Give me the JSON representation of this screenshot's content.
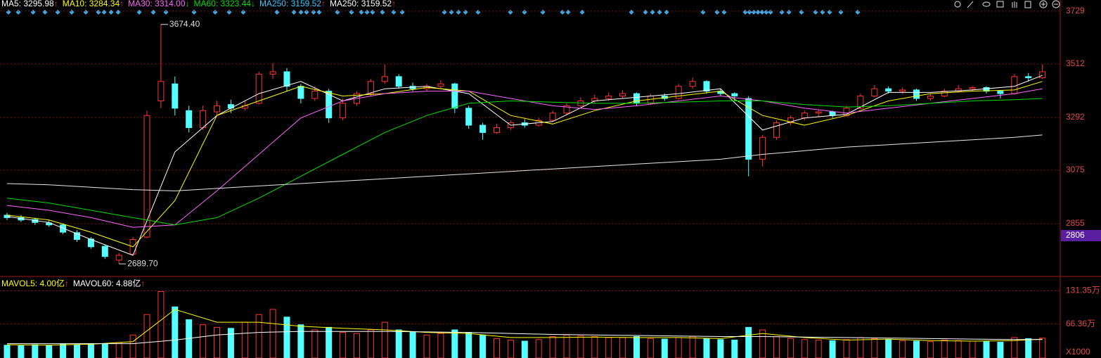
{
  "chart_data": {
    "type": "candlestick",
    "up_color": "#ff3232",
    "down_color": "#54ffff",
    "legend": [
      {
        "text": "MA5: 3295.98",
        "arrow": "↑",
        "color": "#ffffff"
      },
      {
        "text": "MA10: 3284.34",
        "arrow": "↑",
        "color": "#ffff00"
      },
      {
        "text": "MA30: 3314.00",
        "arrow": "↓",
        "color": "#ff66ff"
      },
      {
        "text": "MA60: 3323.44",
        "arrow": "↓",
        "color": "#00e000"
      },
      {
        "text": "MA250: 3159.52",
        "arrow": "↑",
        "color": "#3fc6ff"
      },
      {
        "text": "MA250: 3159.52",
        "arrow": "↑",
        "color": "#ffffff"
      }
    ],
    "ylim": [
      2641,
      3775
    ],
    "yticks": [
      3729,
      3512,
      3292,
      3075,
      2855
    ],
    "price_marker": 2806,
    "open": [
      2890,
      2880,
      2872,
      2858,
      2850,
      2818,
      2792,
      2762,
      2705,
      2730,
      2800,
      3360,
      3430,
      3320,
      3250,
      3315,
      3345,
      3330,
      3350,
      3470,
      3480,
      3420,
      3370,
      3400,
      3290,
      3350,
      3390,
      3440,
      3460,
      3420,
      3410,
      3420,
      3430,
      3330,
      3260,
      3230,
      3250,
      3270,
      3260,
      3280,
      3310,
      3340,
      3360,
      3370,
      3380,
      3390,
      3350,
      3380,
      3370,
      3420,
      3440,
      3400,
      3390,
      3370,
      3120,
      3210,
      3270,
      3290,
      3310,
      3315,
      3300,
      3330,
      3380,
      3410,
      3400,
      3405,
      3370,
      3380,
      3400,
      3410,
      3415,
      3400,
      3390,
      3460,
      3455
    ],
    "high": [
      2900,
      2890,
      2880,
      2870,
      2856,
      2828,
      2800,
      2770,
      2735,
      2800,
      3320,
      3674.4,
      3460,
      3340,
      3340,
      3360,
      3365,
      3360,
      3480,
      3515,
      3495,
      3430,
      3420,
      3410,
      3370,
      3400,
      3450,
      3510,
      3470,
      3435,
      3430,
      3445,
      3435,
      3340,
      3270,
      3265,
      3280,
      3285,
      3290,
      3320,
      3350,
      3375,
      3385,
      3395,
      3405,
      3395,
      3390,
      3390,
      3430,
      3455,
      3445,
      3410,
      3395,
      3380,
      3220,
      3280,
      3300,
      3320,
      3325,
      3320,
      3340,
      3390,
      3425,
      3420,
      3415,
      3410,
      3390,
      3410,
      3425,
      3420,
      3420,
      3405,
      3470,
      3475,
      3510
    ],
    "low": [
      2870,
      2862,
      2850,
      2842,
      2812,
      2780,
      2752,
      2710,
      2689.7,
      2725,
      2795,
      3330,
      3300,
      3230,
      3240,
      3300,
      3310,
      3320,
      3345,
      3450,
      3400,
      3350,
      3360,
      3270,
      3280,
      3340,
      3380,
      3430,
      3410,
      3400,
      3400,
      3410,
      3310,
      3245,
      3200,
      3225,
      3240,
      3250,
      3255,
      3275,
      3305,
      3335,
      3350,
      3360,
      3370,
      3340,
      3345,
      3360,
      3365,
      3410,
      3390,
      3380,
      3360,
      3050,
      3090,
      3200,
      3260,
      3280,
      3295,
      3290,
      3295,
      3325,
      3375,
      3390,
      3390,
      3360,
      3360,
      3375,
      3395,
      3400,
      3390,
      3370,
      3385,
      3440,
      3450
    ],
    "close": [
      2880,
      2870,
      2860,
      2850,
      2820,
      2790,
      2760,
      2720,
      2725,
      2790,
      3300,
      3440,
      3330,
      3250,
      3320,
      3340,
      3330,
      3340,
      3470,
      3480,
      3420,
      3370,
      3400,
      3290,
      3350,
      3390,
      3440,
      3460,
      3420,
      3410,
      3420,
      3430,
      3330,
      3260,
      3230,
      3250,
      3270,
      3260,
      3280,
      3310,
      3340,
      3360,
      3370,
      3380,
      3390,
      3350,
      3380,
      3370,
      3420,
      3440,
      3400,
      3390,
      3380,
      3120,
      3210,
      3270,
      3290,
      3310,
      3315,
      3300,
      3330,
      3380,
      3410,
      3400,
      3405,
      3370,
      3380,
      3400,
      3410,
      3415,
      3400,
      3390,
      3460,
      3455,
      3480
    ],
    "annotations": [
      {
        "x": 11,
        "y": 3674.4,
        "label": "3674.40"
      },
      {
        "x": 8,
        "y": 2689.7,
        "label": "2689.70"
      }
    ],
    "ma_x": [
      0,
      3,
      6,
      9,
      12,
      15,
      18,
      21,
      24,
      27,
      30,
      33,
      36,
      39,
      42,
      45,
      48,
      51,
      54,
      57,
      60,
      63,
      66,
      69,
      72,
      74
    ],
    "ma_series": [
      {
        "color": "#ffffff",
        "values": [
          2885,
          2860,
          2790,
          2725,
          3150,
          3300,
          3390,
          3440,
          3360,
          3410,
          3420,
          3390,
          3260,
          3275,
          3360,
          3375,
          3390,
          3410,
          3240,
          3290,
          3305,
          3395,
          3395,
          3405,
          3420,
          3465
        ]
      },
      {
        "color": "#ffff00",
        "values": [
          2890,
          2870,
          2820,
          2760,
          2950,
          3300,
          3360,
          3420,
          3380,
          3390,
          3415,
          3400,
          3300,
          3265,
          3320,
          3360,
          3380,
          3400,
          3300,
          3260,
          3300,
          3360,
          3390,
          3400,
          3405,
          3440
        ]
      },
      {
        "color": "#ff66ff",
        "values": [
          2930,
          2910,
          2880,
          2840,
          2850,
          2990,
          3140,
          3290,
          3360,
          3390,
          3400,
          3400,
          3370,
          3340,
          3325,
          3340,
          3360,
          3380,
          3360,
          3330,
          3310,
          3330,
          3350,
          3370,
          3390,
          3410
        ]
      },
      {
        "color": "#00e000",
        "values": [
          2960,
          2940,
          2910,
          2880,
          2850,
          2880,
          2960,
          3050,
          3140,
          3230,
          3300,
          3350,
          3360,
          3355,
          3350,
          3350,
          3355,
          3360,
          3360,
          3345,
          3335,
          3340,
          3350,
          3360,
          3365,
          3370
        ]
      },
      {
        "color": "#e8e8e8",
        "values": [
          3020,
          3015,
          3005,
          2995,
          2990,
          3000,
          3010,
          3020,
          3030,
          3040,
          3050,
          3060,
          3070,
          3080,
          3090,
          3100,
          3110,
          3120,
          3140,
          3155,
          3170,
          3180,
          3190,
          3200,
          3210,
          3220
        ]
      }
    ],
    "volume_panel": {
      "legend": [
        {
          "text": "MAVOL5: 4.00亿",
          "arrow": "↑",
          "color": "#ffff00"
        },
        {
          "text": "MAVOL60: 4.88亿",
          "arrow": "↑",
          "color": "#ffffff"
        }
      ],
      "ylim": [
        0,
        154
      ],
      "yticks": [
        {
          "value": 131.35,
          "label": "131.35万"
        },
        {
          "value": 66.36,
          "label": "66.36万"
        }
      ],
      "unit_label": "X1000",
      "values": [
        25,
        24,
        26,
        25,
        27,
        26,
        28,
        27,
        30,
        45,
        85,
        130,
        100,
        75,
        65,
        60,
        58,
        70,
        85,
        95,
        80,
        65,
        55,
        60,
        50,
        48,
        55,
        70,
        55,
        50,
        45,
        48,
        55,
        50,
        45,
        38,
        35,
        33,
        36,
        42,
        45,
        43,
        42,
        40,
        40,
        42,
        38,
        37,
        40,
        42,
        38,
        36,
        35,
        60,
        55,
        42,
        38,
        36,
        35,
        34,
        36,
        40,
        38,
        36,
        34,
        33,
        32,
        35,
        34,
        33,
        32,
        31,
        40,
        38,
        39
      ],
      "ma_series": [
        {
          "color": "#ffff00",
          "values": [
            26,
            25,
            27,
            32,
            95,
            70,
            70,
            62,
            58,
            55,
            50,
            48,
            40,
            40,
            41,
            40,
            40,
            38,
            48,
            40,
            35,
            37,
            34,
            33,
            34,
            37
          ]
        },
        {
          "color": "#ffffff",
          "values": [
            28,
            28,
            28,
            28,
            35,
            45,
            50,
            52,
            52,
            52,
            51,
            50,
            48,
            46,
            45,
            44,
            43,
            42,
            42,
            41,
            40,
            39,
            38,
            37,
            36,
            36
          ]
        }
      ]
    }
  }
}
